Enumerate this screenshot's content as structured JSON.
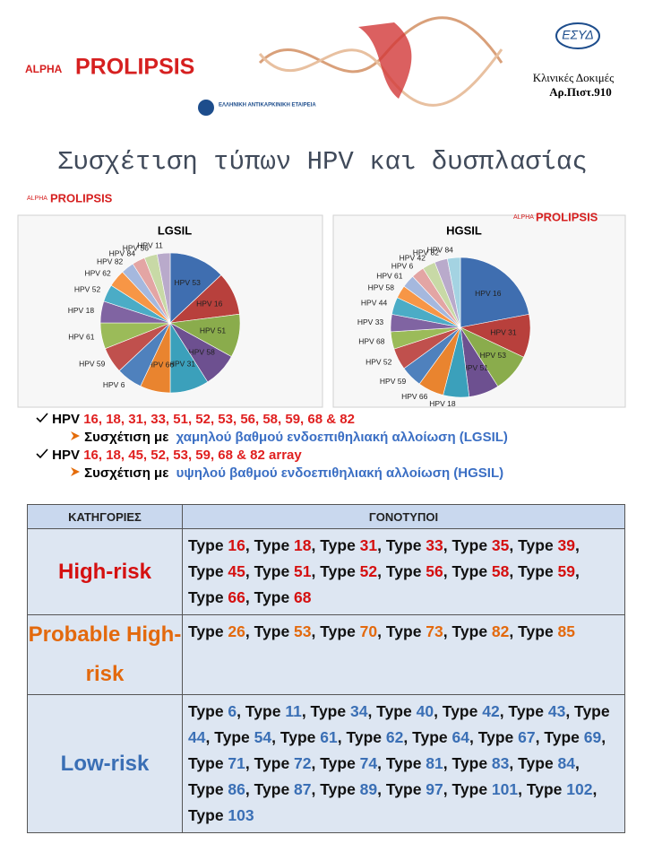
{
  "header": {
    "brand_small": "ALPHA",
    "brand": "PROLIPSIS",
    "society": "ΕΛΛΗΝΙΚΗ ΑΝΤΙΚΑΡΚΙΝΙΚΗ ΕΤΑΙΡΕΙΑ",
    "accreditation_logo": "ΕΣΥΔ",
    "accreditation_line1": "Κλινικές Δοκιμές",
    "accreditation_line2": "Αρ.Πιστ.910"
  },
  "title": "Συσχέτιση τύπων HPV και δυσπλασίας",
  "chart_data": [
    {
      "type": "pie",
      "title": "LGSIL",
      "categories": [
        "HPV 53",
        "HPV 16",
        "HPV 51",
        "HPV 58",
        "HPV 31",
        "HPV 66",
        "HPV 6",
        "HPV 59",
        "HPV 61",
        "HPV 18",
        "HPV 52",
        "HPV 62",
        "HPV 82",
        "HPV 84",
        "HPV 56",
        "HPV 11"
      ],
      "values": [
        13,
        10,
        10,
        8,
        9,
        7,
        6,
        6,
        6,
        5,
        4,
        4,
        3,
        3,
        3,
        3
      ],
      "colors": [
        "#3f6eb0",
        "#b8403c",
        "#8aac4c",
        "#6d5090",
        "#3ba0bb",
        "#e9842f",
        "#4f81bd",
        "#c0504d",
        "#9bbb59",
        "#8064a2",
        "#4bacc6",
        "#f79646",
        "#a5b8de",
        "#e3a5a4",
        "#c8d9a6",
        "#b9aacb"
      ]
    },
    {
      "type": "pie",
      "title": "HGSIL",
      "categories": [
        "HPV 16",
        "HPV 31",
        "HPV 53",
        "HPV 51",
        "HPV 18",
        "HPV 66",
        "HPV 59",
        "HPV 52",
        "HPV 68",
        "HPV 33",
        "HPV 44",
        "HPV 58",
        "HPV 61",
        "HPV 6",
        "HPV 42",
        "HPV 82",
        "HPV 84"
      ],
      "values": [
        22,
        10,
        9,
        7,
        6,
        6,
        5,
        5,
        4,
        4,
        4,
        3,
        3,
        3,
        3,
        3,
        3
      ],
      "colors": [
        "#3f6eb0",
        "#b8403c",
        "#8aac4c",
        "#6d5090",
        "#3ba0bb",
        "#e9842f",
        "#4f81bd",
        "#c0504d",
        "#9bbb59",
        "#8064a2",
        "#4bacc6",
        "#f79646",
        "#a5b8de",
        "#e3a5a4",
        "#c8d9a6",
        "#b9aacb",
        "#a4d3e2"
      ]
    }
  ],
  "bullets": [
    {
      "prefix": "HPV",
      "types": "16, 18, 31, 33, 51, 52, 53, 56, 58, 59, 68 & 82",
      "sub_prefix": "Συσχέτιση με",
      "sub_text": "χαμηλού βαθμού ενδοεπιθηλιακή αλλοίωση (LGSIL)"
    },
    {
      "prefix": "HPV",
      "types": "16, 18, 45, 52, 53, 59, 68 & 82 array",
      "sub_prefix": "Συσχέτιση με",
      "sub_text": "υψηλού βαθμού ενδοεπιθηλιακή αλλοίωση (HGSIL)"
    }
  ],
  "table": {
    "headers": [
      "ΚΑΤΗΓΟΡΙΕΣ",
      "ΓΟΝΟΤΥΠΟΙ"
    ],
    "type_word": "Type",
    "separator": ", ",
    "rows": [
      {
        "category": "High-risk",
        "types": [
          16,
          18,
          31,
          33,
          35,
          39,
          45,
          51,
          52,
          56,
          58,
          59,
          66,
          68
        ]
      },
      {
        "category": "Probable High-risk",
        "types": [
          26,
          53,
          70,
          73,
          82,
          85
        ]
      },
      {
        "category": "Low-risk",
        "types": [
          6,
          11,
          34,
          40,
          42,
          43,
          44,
          54,
          61,
          62,
          64,
          67,
          69,
          71,
          72,
          74,
          81,
          83,
          84,
          86,
          87,
          89,
          97,
          101,
          102,
          103
        ]
      }
    ]
  }
}
